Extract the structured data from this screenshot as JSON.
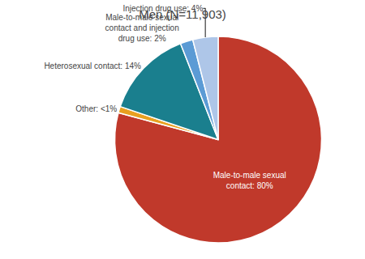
{
  "chart_data": {
    "type": "pie",
    "title": "Men (N=11,903)",
    "categories": [
      "Male-to-male sexual\ncontact: 80%",
      "Other: <1%",
      "Heterosexual contact: 14%",
      "Male-to-male sexual\ncontact and injection\ndrug use: 2%",
      "Injection drug use: 4%"
    ],
    "values": [
      80,
      1,
      14,
      2,
      4
    ],
    "colors": [
      "#c0392b",
      "#e8a020",
      "#1a7f8e",
      "#5b9bd5",
      "#aec6e8"
    ],
    "data_labels": true
  }
}
